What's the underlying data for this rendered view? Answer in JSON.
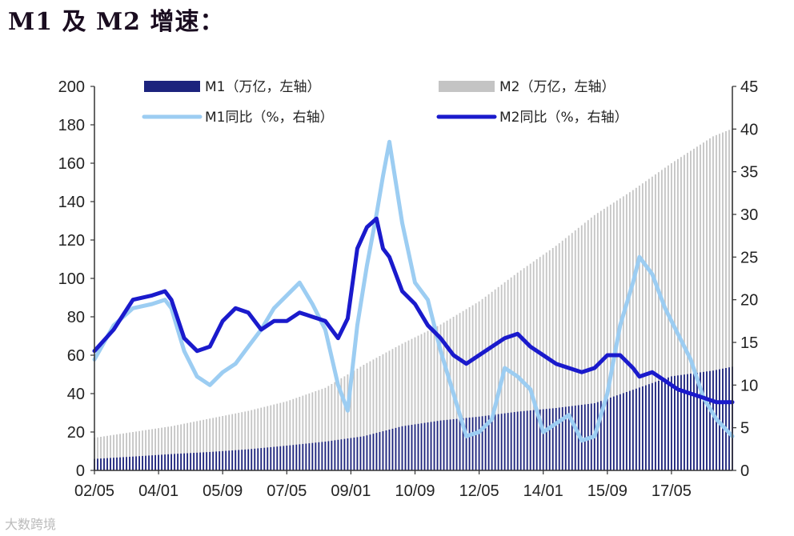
{
  "title": "M1 及 M2 增速：",
  "watermark": "大数跨境",
  "chart_data": {
    "type": "bar+line",
    "title": "M1 及 M2 增速：",
    "x_start": "2002-05",
    "x_end": "2018-12",
    "x_ticks": [
      "02/05",
      "04/01",
      "05/09",
      "07/05",
      "09/01",
      "10/09",
      "12/05",
      "14/01",
      "15/09",
      "17/05"
    ],
    "y_left": {
      "ticks": [
        0,
        20,
        40,
        60,
        80,
        100,
        120,
        140,
        160,
        180,
        200
      ],
      "range": [
        0,
        200
      ]
    },
    "y_right": {
      "ticks": [
        0,
        5,
        10,
        15,
        20,
        25,
        30,
        35,
        40,
        45
      ],
      "range": [
        0,
        45
      ]
    },
    "grid": false,
    "legend_position": "top",
    "colors": {
      "m1": "#1c237d",
      "m2": "#c4c4c4",
      "m1_yoy": "#9ccdf2",
      "m2_yoy": "#1a1acc"
    },
    "series": [
      {
        "name": "M1（万亿，左轴）",
        "kind": "bar",
        "axis": "left",
        "x": [
          "2002-05",
          "2003-05",
          "2004-05",
          "2005-05",
          "2006-05",
          "2007-05",
          "2008-05",
          "2009-05",
          "2010-05",
          "2011-05",
          "2012-05",
          "2013-05",
          "2014-05",
          "2015-05",
          "2016-05",
          "2017-05",
          "2018-06",
          "2018-12"
        ],
        "y": [
          6.0,
          7.2,
          8.5,
          9.6,
          11.0,
          12.9,
          15.0,
          17.8,
          23.0,
          26.0,
          28.0,
          30.6,
          32.5,
          35.0,
          42.0,
          49.0,
          52.0,
          54.0
        ]
      },
      {
        "name": "M2（万亿，左轴）",
        "kind": "bar",
        "axis": "left",
        "x": [
          "2002-05",
          "2003-05",
          "2004-05",
          "2005-05",
          "2006-05",
          "2007-05",
          "2008-05",
          "2009-05",
          "2010-05",
          "2011-05",
          "2012-05",
          "2013-05",
          "2014-05",
          "2015-05",
          "2016-05",
          "2017-05",
          "2018-06",
          "2018-12"
        ],
        "y": [
          17.0,
          20.0,
          23.0,
          27.0,
          31.0,
          36.0,
          43.0,
          55.0,
          66.0,
          76.0,
          88.0,
          103.0,
          117.0,
          133.0,
          146.0,
          160.0,
          174.0,
          178.0
        ]
      },
      {
        "name": "M1同比（%，右轴）",
        "kind": "line",
        "axis": "right",
        "x": [
          "2002-05",
          "2002-11",
          "2003-05",
          "2003-11",
          "2004-03",
          "2004-05",
          "2004-09",
          "2005-01",
          "2005-05",
          "2005-09",
          "2006-01",
          "2006-05",
          "2006-09",
          "2007-01",
          "2007-05",
          "2007-09",
          "2008-01",
          "2008-05",
          "2008-09",
          "2008-12",
          "2009-03",
          "2009-06",
          "2009-09",
          "2009-11",
          "2010-01",
          "2010-05",
          "2010-09",
          "2011-01",
          "2011-05",
          "2011-09",
          "2012-01",
          "2012-05",
          "2012-09",
          "2013-01",
          "2013-05",
          "2013-09",
          "2014-01",
          "2014-05",
          "2014-09",
          "2015-01",
          "2015-05",
          "2015-09",
          "2016-01",
          "2016-05",
          "2016-07",
          "2016-11",
          "2017-03",
          "2017-07",
          "2017-11",
          "2018-03",
          "2018-07",
          "2018-12"
        ],
        "y": [
          13.0,
          17.0,
          19.0,
          19.5,
          20.0,
          19.0,
          14.0,
          11.0,
          10.0,
          11.5,
          12.5,
          14.5,
          16.5,
          19.0,
          20.5,
          22.0,
          19.5,
          16.5,
          10.0,
          7.0,
          17.0,
          24.0,
          30.0,
          34.5,
          38.5,
          29.0,
          22.0,
          20.0,
          14.0,
          9.0,
          4.0,
          4.5,
          6.0,
          12.0,
          11.0,
          9.5,
          4.5,
          5.5,
          6.5,
          3.5,
          4.0,
          9.0,
          17.0,
          22.0,
          25.0,
          23.0,
          19.0,
          16.0,
          13.0,
          8.5,
          6.0,
          4.0
        ]
      },
      {
        "name": "M2同比（%，右轴）",
        "kind": "line",
        "axis": "right",
        "x": [
          "2002-05",
          "2002-11",
          "2003-05",
          "2003-11",
          "2004-03",
          "2004-05",
          "2004-09",
          "2005-01",
          "2005-05",
          "2005-09",
          "2006-01",
          "2006-05",
          "2006-09",
          "2007-01",
          "2007-05",
          "2007-09",
          "2008-01",
          "2008-05",
          "2008-09",
          "2008-12",
          "2009-03",
          "2009-06",
          "2009-09",
          "2009-11",
          "2010-01",
          "2010-05",
          "2010-09",
          "2011-01",
          "2011-05",
          "2011-09",
          "2012-01",
          "2012-05",
          "2012-09",
          "2013-01",
          "2013-05",
          "2013-09",
          "2014-01",
          "2014-05",
          "2014-09",
          "2015-01",
          "2015-05",
          "2015-09",
          "2016-01",
          "2016-05",
          "2016-07",
          "2016-11",
          "2017-03",
          "2017-07",
          "2017-11",
          "2018-03",
          "2018-07",
          "2018-12"
        ],
        "y": [
          14.0,
          16.5,
          20.0,
          20.5,
          21.0,
          20.0,
          15.5,
          14.0,
          14.5,
          17.5,
          19.0,
          18.5,
          16.5,
          17.5,
          17.5,
          18.5,
          18.0,
          17.5,
          15.5,
          17.8,
          26.0,
          28.5,
          29.5,
          26.0,
          25.0,
          21.0,
          19.5,
          17.0,
          15.5,
          13.5,
          12.5,
          13.5,
          14.5,
          15.5,
          16.0,
          14.5,
          13.5,
          12.5,
          12.0,
          11.5,
          12.0,
          13.5,
          13.5,
          12.0,
          11.0,
          11.5,
          10.5,
          9.5,
          9.0,
          8.5,
          8.0,
          8.0
        ]
      }
    ]
  }
}
